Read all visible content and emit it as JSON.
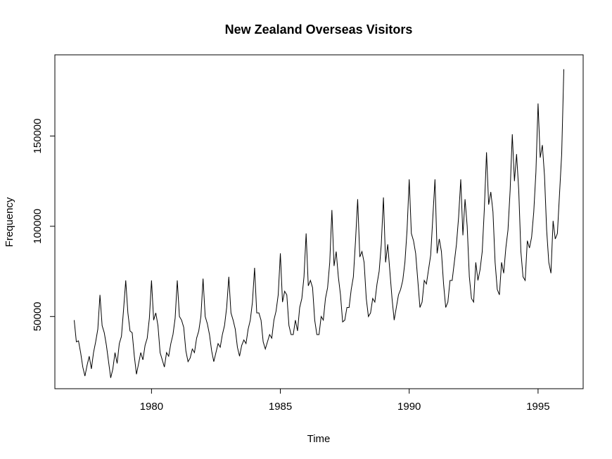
{
  "chart_data": {
    "type": "line",
    "title": "New Zealand Overseas Visitors",
    "xlabel": "Time",
    "ylabel": "Frequency",
    "xlim": [
      1976.25,
      1996.75
    ],
    "ylim": [
      10000,
      195000
    ],
    "x_ticks": [
      1980,
      1985,
      1990,
      1995
    ],
    "x_tick_labels": [
      "1980",
      "1985",
      "1990",
      "1995"
    ],
    "y_ticks": [
      50000,
      100000,
      150000
    ],
    "y_tick_labels": [
      "50000",
      "100000",
      "150000"
    ],
    "grid": false,
    "legend": "none",
    "series": [
      {
        "start": 1977.0,
        "frequency": 12,
        "values": [
          48000,
          36000,
          36500,
          30000,
          22000,
          17000,
          23000,
          28000,
          21000,
          30000,
          36000,
          43000,
          62000,
          45000,
          41000,
          34000,
          25000,
          16000,
          21000,
          30000,
          24000,
          35000,
          39000,
          54000,
          70000,
          52000,
          42000,
          41000,
          28000,
          18000,
          24000,
          30000,
          26000,
          34000,
          38000,
          49000,
          70000,
          48000,
          52000,
          45000,
          30000,
          26000,
          22000,
          30000,
          28000,
          35000,
          40000,
          49000,
          70000,
          50000,
          48000,
          44000,
          31000,
          25000,
          27000,
          32000,
          30000,
          38000,
          42000,
          50000,
          71000,
          50000,
          46000,
          40000,
          31000,
          25000,
          30000,
          35000,
          33000,
          40000,
          45000,
          55000,
          72000,
          52000,
          48000,
          43000,
          33000,
          28000,
          34000,
          37000,
          35000,
          43000,
          48000,
          58000,
          77000,
          52000,
          52000,
          48000,
          36000,
          32000,
          36000,
          40000,
          38000,
          48000,
          53000,
          62000,
          85000,
          58000,
          64000,
          62000,
          45000,
          40000,
          40000,
          48000,
          42000,
          55000,
          60000,
          72000,
          96000,
          67000,
          70000,
          66000,
          48000,
          40000,
          40000,
          50000,
          48000,
          60000,
          66000,
          80000,
          109000,
          78000,
          86000,
          72000,
          62000,
          47000,
          48000,
          55000,
          55000,
          65000,
          72000,
          92000,
          115000,
          83000,
          86000,
          80000,
          60000,
          50000,
          52000,
          60000,
          58000,
          68000,
          75000,
          90000,
          116000,
          80000,
          90000,
          75000,
          60000,
          48000,
          55000,
          62000,
          65000,
          70000,
          80000,
          98000,
          126000,
          96000,
          92000,
          85000,
          70000,
          55000,
          58000,
          70000,
          68000,
          76000,
          84000,
          105000,
          126000,
          85000,
          93000,
          86000,
          68000,
          55000,
          58000,
          70000,
          70000,
          80000,
          90000,
          105000,
          126000,
          95000,
          115000,
          100000,
          72000,
          60000,
          58000,
          80000,
          70000,
          76000,
          86000,
          110000,
          141000,
          112000,
          119000,
          108000,
          80000,
          65000,
          62000,
          80000,
          74000,
          88000,
          98000,
          120000,
          151000,
          125000,
          140000,
          120000,
          86000,
          72000,
          70000,
          92000,
          88000,
          94000,
          108000,
          130000,
          168000,
          138000,
          145000,
          128000,
          98000,
          80000,
          74000,
          103000,
          93000,
          96000,
          118000,
          140000,
          187000
        ]
      }
    ]
  }
}
